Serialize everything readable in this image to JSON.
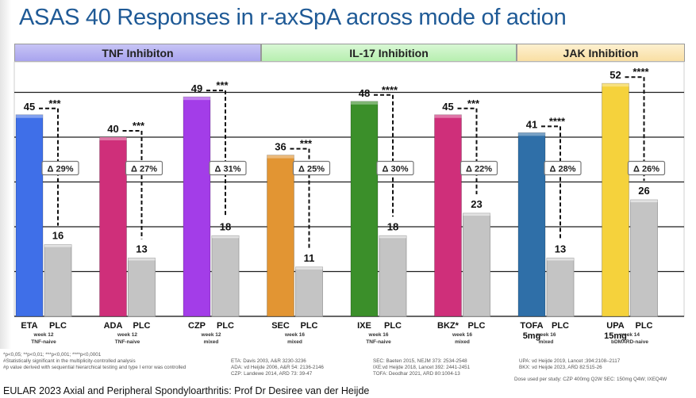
{
  "title": "ASAS 40 Responses in r-axSpA across mode of action",
  "bands": [
    {
      "label": "TNF Inhibiton",
      "color": "#b3aff0"
    },
    {
      "label": "IL-17 Inhibition",
      "color": "#c2f2bb"
    },
    {
      "label": "JAK Inhibition",
      "color": "#fbe6b5"
    }
  ],
  "chart_data": {
    "type": "bar",
    "ylim": [
      0,
      60
    ],
    "grid": true,
    "series": [
      {
        "name": "Active",
        "values": [
          45,
          40,
          49,
          36,
          48,
          45,
          41,
          52
        ]
      },
      {
        "name": "PLC",
        "values": [
          16,
          13,
          18,
          11,
          18,
          23,
          13,
          26
        ]
      }
    ],
    "groups": [
      {
        "drug": "ETA",
        "placebo": "PLC",
        "drug_value": 45,
        "placebo_value": 16,
        "delta": "Δ 29%",
        "stars": "***",
        "week": "week 12",
        "population": "TNF-naive",
        "color": "#3f6fe8"
      },
      {
        "drug": "ADA",
        "placebo": "PLC",
        "drug_value": 40,
        "placebo_value": 13,
        "delta": "Δ 27%",
        "stars": "***",
        "week": "week 12",
        "population": "TNF-naive",
        "color": "#cf2f7a"
      },
      {
        "drug": "CZP",
        "placebo": "PLC",
        "drug_value": 49,
        "placebo_value": 18,
        "delta": "Δ 31%",
        "stars": "***",
        "week": "week 12",
        "population": "mixed",
        "color": "#a33de8"
      },
      {
        "drug": "SEC",
        "placebo": "PLC",
        "drug_value": 36,
        "placebo_value": 11,
        "delta": "Δ 25%",
        "stars": "***",
        "week": "week 16",
        "population": "mixed",
        "color": "#e29533"
      },
      {
        "drug": "IXE",
        "placebo": "PLC",
        "drug_value": 48,
        "placebo_value": 18,
        "delta": "Δ 30%",
        "stars": "****",
        "week": "week 16",
        "population": "TNF-naive",
        "color": "#3b8f2a"
      },
      {
        "drug": "BKZ*",
        "placebo": "PLC",
        "drug_value": 45,
        "placebo_value": 23,
        "delta": "Δ 22%",
        "stars": "***",
        "week": "week 16",
        "population": "mixed",
        "color": "#cf2f7a"
      },
      {
        "drug": "TOFA 5mg",
        "placebo": "PLC",
        "drug_value": 41,
        "placebo_value": 13,
        "delta": "Δ 28%",
        "stars": "****",
        "week": "week 16",
        "population": "mixed",
        "color": "#2f6fa8"
      },
      {
        "drug": "UPA 15mg",
        "placebo": "PLC",
        "drug_value": 52,
        "placebo_value": 26,
        "delta": "Δ 26%",
        "stars": "****",
        "week": "week 14",
        "population": "bDMARD-naive",
        "color": "#f5d23c"
      }
    ]
  },
  "footnotes": {
    "left": [
      "*p<0,05; **p<0,01; ***p<0,001; ****p<0,0001",
      "#Statistically significant in the multiplicity-controlled analysis",
      "#p value derived with sequential hierarchical testing and type I error was controlled"
    ],
    "refs1": [
      "ETA: Davis 2003, A&R 3230-3236",
      "ADA: vd Heijde 2006, A&R 54: 2136-2146",
      "CZP: Landewe 2014, ARD 73: 39-47"
    ],
    "refs2": [
      "SEC: Baeten 2015, NEJM 373: 2534-2548",
      "IXE:vd Heijde 2018, Lancet 392: 2441-2451",
      "TOFA: Deodhar 2021, ARD 80:1004-13"
    ],
    "refs3": [
      "UPA: vd Heijde 2019, Lancet ;394:2108–2117",
      "BKX: vd Heijde 2023, ARD 82:515-26"
    ],
    "dose": "Dose used per study: CZP 400mg Q2W SEC: 150mg Q4W; IXEQ4W"
  },
  "caption": "EULAR 2023 Axial and Peripheral Spondyloarthritis: Prof Dr Desiree van der Heijde"
}
